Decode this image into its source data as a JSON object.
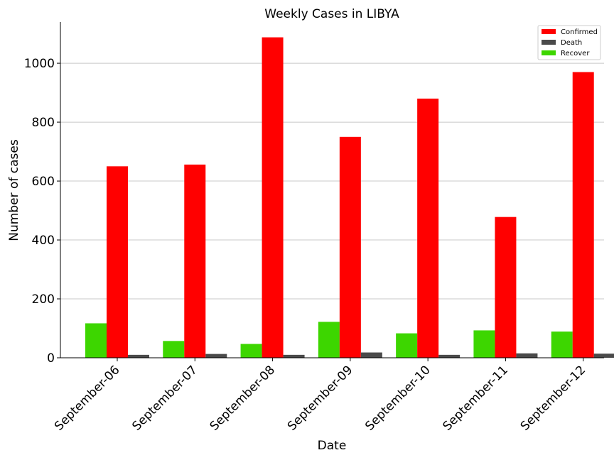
{
  "chart_data": {
    "type": "bar",
    "title": "Weekly Cases in LIBYA",
    "xlabel": "Date",
    "ylabel": "Number of cases",
    "categories": [
      "September-06",
      "September-07",
      "September-08",
      "September-09",
      "September-10",
      "September-11",
      "September-12"
    ],
    "series": [
      {
        "name": "Recover",
        "color": "#3dd600",
        "values": [
          117,
          57,
          47,
          122,
          83,
          93,
          89
        ]
      },
      {
        "name": "Confirmed",
        "color": "#ff0000",
        "values": [
          650,
          656,
          1088,
          750,
          880,
          478,
          970
        ]
      },
      {
        "name": "Death",
        "color": "#4a4a4a",
        "values": [
          10,
          13,
          10,
          18,
          10,
          15,
          14
        ]
      }
    ],
    "legend_order": [
      "Confirmed",
      "Death",
      "Recover"
    ],
    "ylim": [
      0,
      1140
    ],
    "yticks": [
      0,
      200,
      400,
      600,
      800,
      1000
    ],
    "grid": "horizontal",
    "legend_position": "top-right"
  }
}
